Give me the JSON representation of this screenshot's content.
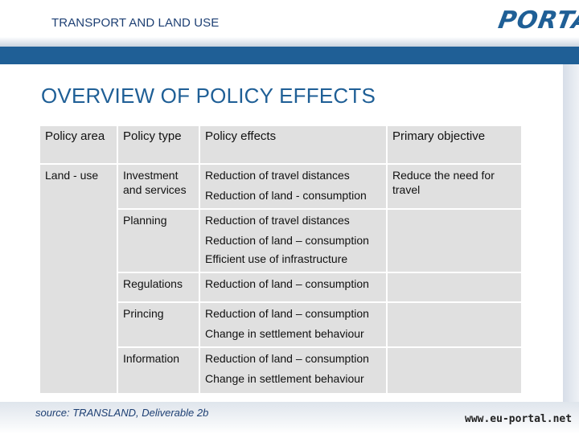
{
  "header": {
    "title": "TRANSPORT AND LAND USE",
    "logo_text": "PORTAL"
  },
  "title": "OVERVIEW OF POLICY EFFECTS",
  "table": {
    "columns": [
      "Policy area",
      "Policy type",
      "Policy effects",
      "Primary objective"
    ],
    "area": "Land - use",
    "objective": "Reduce the need for travel",
    "rows": [
      {
        "type": "Investment and services",
        "effects": [
          "Reduction of travel distances",
          "Reduction of land - consumption"
        ]
      },
      {
        "type": "Planning",
        "effects": [
          "Reduction of travel distances",
          "Reduction of land – consumption",
          "Efficient use of infrastructure"
        ]
      },
      {
        "type": "Regulations",
        "effects": [
          "Reduction of land – consumption"
        ]
      },
      {
        "type": "Princing",
        "effects": [
          "Reduction of land – consumption",
          "Change in settlement behaviour"
        ]
      },
      {
        "type": "Information",
        "effects": [
          "Reduction of land – consumption",
          "Change in settlement behaviour"
        ]
      }
    ]
  },
  "footer": {
    "source": "source: TRANSLAND, Deliverable 2b",
    "url": "www.eu-portal.net"
  },
  "colors": {
    "brand_blue": "#1f5f96",
    "cell_gray": "#e0e0e0"
  }
}
